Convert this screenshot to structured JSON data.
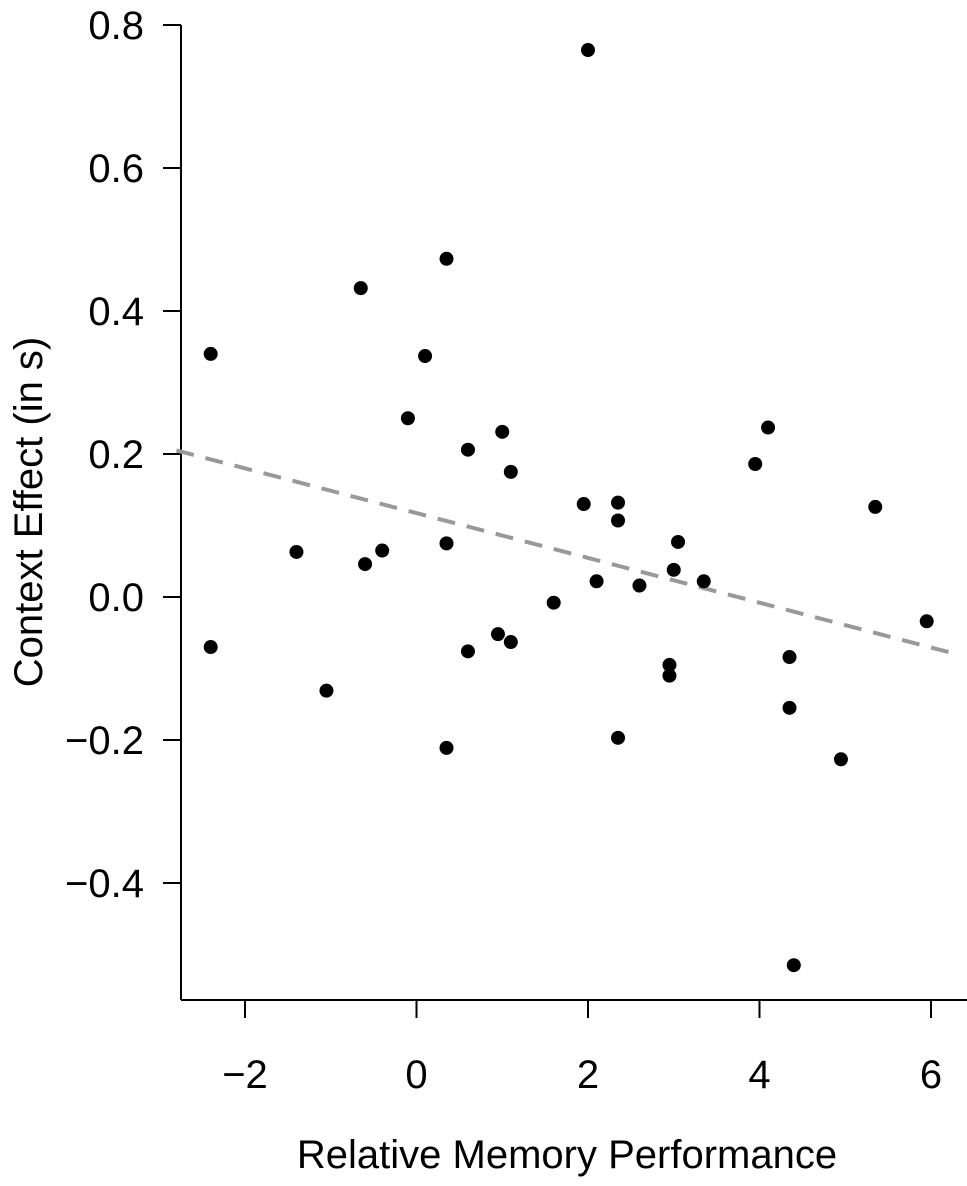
{
  "chart_data": {
    "type": "scatter",
    "title": "",
    "xlabel": "Relative Memory Performance",
    "ylabel": "Context Effect (in s)",
    "xlim": [
      -2.8,
      6.3
    ],
    "ylim": [
      -0.57,
      0.82
    ],
    "x_ticks": [
      -2,
      0,
      2,
      4,
      6
    ],
    "x_tick_labels": [
      "−2",
      "0",
      "2",
      "4",
      "6"
    ],
    "y_ticks": [
      -0.4,
      -0.2,
      0.0,
      0.2,
      0.4,
      0.6,
      0.8
    ],
    "y_tick_labels": [
      "−0.4",
      "−0.2",
      "0.0",
      "0.2",
      "0.4",
      "0.6",
      "0.8"
    ],
    "grid": false,
    "point_color": "#000000",
    "trend_color": "#999999",
    "points": [
      {
        "x": 2.0,
        "y": 0.765
      },
      {
        "x": 0.35,
        "y": 0.473
      },
      {
        "x": -0.65,
        "y": 0.432
      },
      {
        "x": -2.4,
        "y": 0.34
      },
      {
        "x": 0.1,
        "y": 0.337
      },
      {
        "x": -0.1,
        "y": 0.25
      },
      {
        "x": 4.1,
        "y": 0.237
      },
      {
        "x": 1.0,
        "y": 0.231
      },
      {
        "x": 0.6,
        "y": 0.206
      },
      {
        "x": 3.95,
        "y": 0.186
      },
      {
        "x": 1.1,
        "y": 0.175
      },
      {
        "x": 2.35,
        "y": 0.132
      },
      {
        "x": 1.95,
        "y": 0.13
      },
      {
        "x": 5.35,
        "y": 0.126
      },
      {
        "x": 2.35,
        "y": 0.107
      },
      {
        "x": 3.05,
        "y": 0.077
      },
      {
        "x": 0.35,
        "y": 0.075
      },
      {
        "x": -0.4,
        "y": 0.065
      },
      {
        "x": -1.4,
        "y": 0.063
      },
      {
        "x": -0.6,
        "y": 0.046
      },
      {
        "x": 3.0,
        "y": 0.038
      },
      {
        "x": 2.1,
        "y": 0.022
      },
      {
        "x": 3.35,
        "y": 0.022
      },
      {
        "x": 2.6,
        "y": 0.016
      },
      {
        "x": 1.6,
        "y": -0.008
      },
      {
        "x": 5.95,
        "y": -0.034
      },
      {
        "x": 0.95,
        "y": -0.052
      },
      {
        "x": 1.1,
        "y": -0.063
      },
      {
        "x": -2.4,
        "y": -0.07
      },
      {
        "x": 0.6,
        "y": -0.076
      },
      {
        "x": 4.35,
        "y": -0.084
      },
      {
        "x": 2.95,
        "y": -0.095
      },
      {
        "x": 2.95,
        "y": -0.11
      },
      {
        "x": -1.05,
        "y": -0.131
      },
      {
        "x": 4.35,
        "y": -0.155
      },
      {
        "x": 2.35,
        "y": -0.197
      },
      {
        "x": 0.35,
        "y": -0.211
      },
      {
        "x": 4.95,
        "y": -0.227
      },
      {
        "x": 4.4,
        "y": -0.515
      }
    ],
    "trend_line": {
      "x": [
        -2.8,
        6.3
      ],
      "y": [
        0.205,
        -0.08
      ],
      "style": "dashed"
    }
  }
}
